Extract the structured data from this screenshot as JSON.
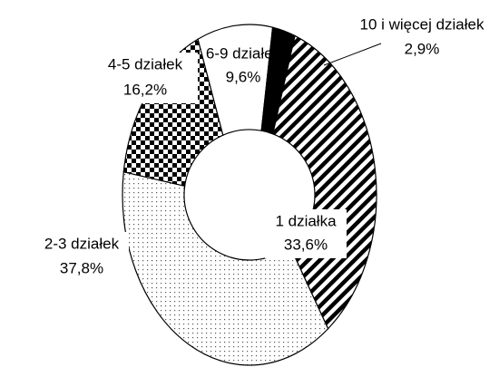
{
  "chart_data": {
    "type": "donut",
    "categories": [
      "6-9 działek",
      "10 i więcej działek",
      "1 działka",
      "2-3 działek",
      "4-5 działek"
    ],
    "values": [
      9.6,
      2.9,
      33.6,
      37.8,
      16.2
    ],
    "value_labels": [
      "9,6%",
      "2,9%",
      "33,6%",
      "37,8%",
      "16,2%"
    ]
  }
}
